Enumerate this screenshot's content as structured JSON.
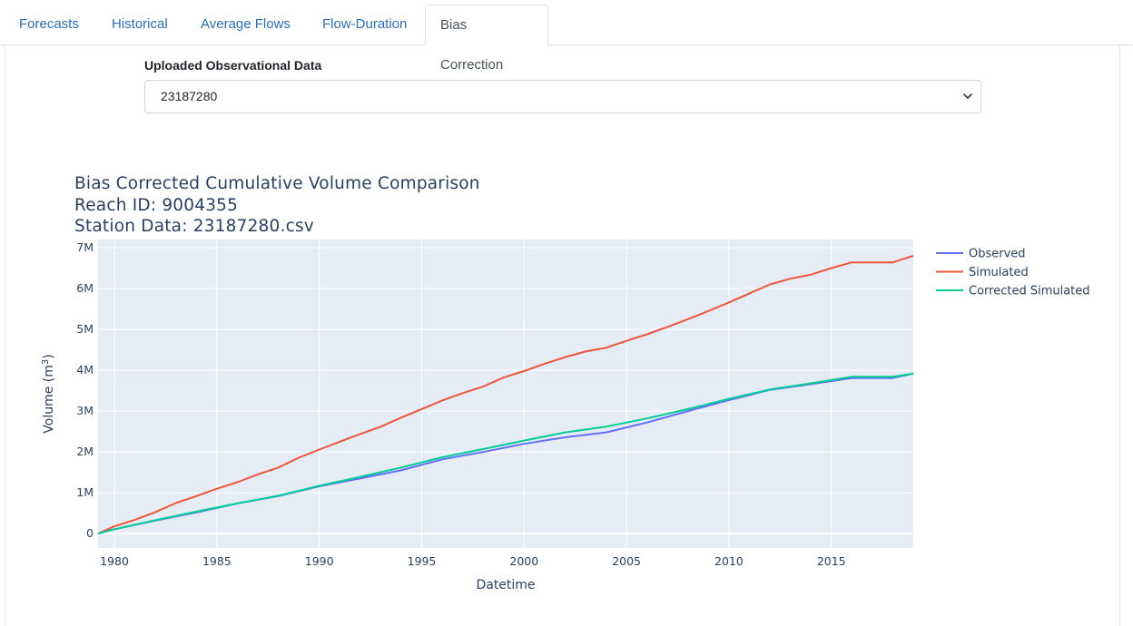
{
  "tabs": [
    {
      "label": "Forecasts",
      "active": false
    },
    {
      "label": "Historical",
      "active": false
    },
    {
      "label": "Average Flows",
      "active": false
    },
    {
      "label": "Flow-Duration",
      "active": false
    },
    {
      "label": "Bias Correction",
      "active": true
    }
  ],
  "form": {
    "label": "Uploaded Observational Data",
    "selected_value": "23187280"
  },
  "chart_data": {
    "type": "line",
    "title": "Bias Corrected Cumulative Volume Comparison",
    "subtitle_lines": [
      "Reach ID: 9004355",
      "Station Data: 23187280.csv"
    ],
    "xlabel": "Datetime",
    "ylabel": "Volume (m³)",
    "ylabel_base": "Volume (m",
    "ylabel_sup": "3",
    "ylabel_close": ")",
    "xlim": [
      1979.2,
      2019.0
    ],
    "ylim": [
      -0.35,
      7.2
    ],
    "x_ticks": [
      1980,
      1985,
      1990,
      1995,
      2000,
      2005,
      2010,
      2015
    ],
    "y_ticks": [
      0,
      1,
      2,
      3,
      4,
      5,
      6,
      7
    ],
    "y_tick_labels": [
      "0",
      "1M",
      "2M",
      "3M",
      "4M",
      "5M",
      "6M",
      "7M"
    ],
    "y_units": "millions of m³",
    "grid": true,
    "legend_position": "right",
    "series": [
      {
        "name": "Observed",
        "color": "#636efa",
        "x": [
          1979.2,
          1980,
          1982,
          1984,
          1986,
          1988,
          1990,
          1992,
          1994,
          1996,
          1998,
          2000,
          2002,
          2004,
          2006,
          2008,
          2010,
          2012,
          2014,
          2016,
          2018,
          2019
        ],
        "y": [
          0,
          0.11,
          0.32,
          0.52,
          0.74,
          0.92,
          1.16,
          1.35,
          1.55,
          1.82,
          2.0,
          2.2,
          2.36,
          2.48,
          2.72,
          3.0,
          3.27,
          3.52,
          3.66,
          3.81,
          3.81,
          3.92
        ]
      },
      {
        "name": "Simulated",
        "color": "#ef553b",
        "x": [
          1979.2,
          1980,
          1981,
          1982,
          1983,
          1984,
          1985,
          1986,
          1987,
          1988,
          1989,
          1990,
          1991,
          1992,
          1993,
          1994,
          1995,
          1996,
          1997,
          1998,
          1999,
          2000,
          2001,
          2002,
          2003,
          2004,
          2005,
          2006,
          2007,
          2008,
          2009,
          2010,
          2011,
          2012,
          2013,
          2014,
          2015,
          2016,
          2017,
          2018,
          2018.5,
          2019
        ],
        "y": [
          0,
          0.18,
          0.34,
          0.53,
          0.75,
          0.92,
          1.1,
          1.26,
          1.45,
          1.62,
          1.86,
          2.06,
          2.25,
          2.44,
          2.62,
          2.84,
          3.05,
          3.26,
          3.44,
          3.6,
          3.82,
          3.98,
          4.16,
          4.32,
          4.46,
          4.55,
          4.72,
          4.88,
          5.06,
          5.25,
          5.45,
          5.66,
          5.88,
          6.1,
          6.24,
          6.34,
          6.5,
          6.64,
          6.64,
          6.64,
          6.72,
          6.8
        ]
      },
      {
        "name": "Corrected Simulated",
        "color": "#00cc96",
        "x": [
          1979.2,
          1980,
          1982,
          1984,
          1986,
          1988,
          1990,
          1992,
          1994,
          1996,
          1998,
          2000,
          2002,
          2004,
          2006,
          2008,
          2010,
          2012,
          2014,
          2016,
          2018,
          2019
        ],
        "y": [
          0,
          0.11,
          0.33,
          0.54,
          0.74,
          0.93,
          1.17,
          1.39,
          1.62,
          1.87,
          2.07,
          2.28,
          2.48,
          2.62,
          2.82,
          3.05,
          3.3,
          3.53,
          3.68,
          3.84,
          3.84,
          3.92
        ]
      }
    ]
  }
}
